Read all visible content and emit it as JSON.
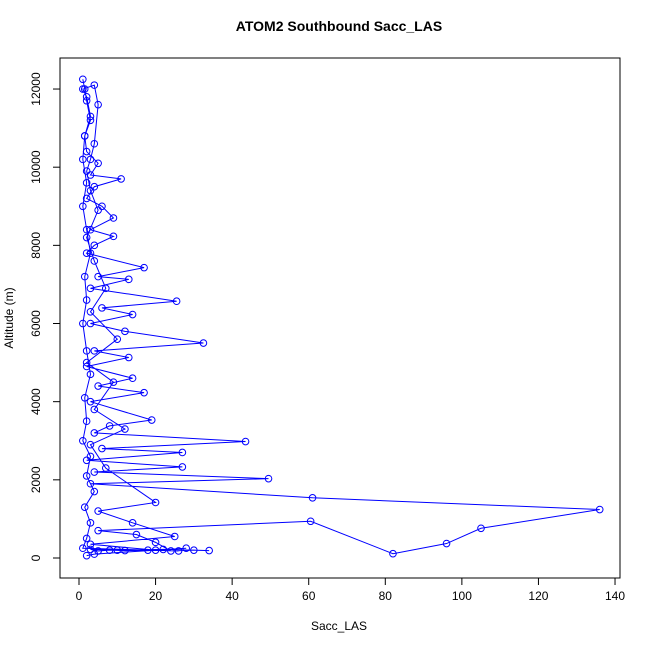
{
  "chart_data": {
    "type": "line",
    "title": "ATOM2 Southbound Sacc_LAS",
    "x_label": "Sacc_LAS",
    "y_label": "Altitude (m)",
    "color": "#0000ff",
    "marker": "circle",
    "x": [
      1,
      1.5,
      2,
      3,
      1.5,
      2,
      5,
      3,
      11,
      4,
      2,
      6,
      9,
      3,
      9,
      4,
      2,
      17,
      5,
      13,
      3,
      25.5,
      6,
      14,
      3,
      12,
      32.5,
      4,
      13,
      2,
      14,
      5,
      17,
      3,
      19,
      8,
      4,
      43.5,
      6,
      27,
      2,
      27,
      4,
      49.5,
      3,
      61,
      136,
      105,
      96,
      82,
      60.5,
      5,
      15,
      20,
      24,
      30,
      34,
      22,
      10,
      3,
      5,
      8,
      12,
      18,
      26,
      1,
      2,
      3,
      1.5,
      4,
      2,
      3,
      1,
      2,
      1.5,
      3,
      2,
      1,
      2,
      1.5,
      3,
      2,
      1,
      2,
      1,
      1.5,
      3,
      2,
      1,
      4,
      5,
      4,
      3,
      2,
      3,
      5,
      2,
      4,
      7,
      3,
      10,
      2,
      9,
      4,
      12,
      3,
      7,
      20,
      5,
      14,
      25,
      3,
      20,
      28,
      4,
      2
    ],
    "values": [
      12250,
      12000,
      11700,
      11200,
      10800,
      10400,
      10100,
      9800,
      9700,
      9500,
      9200,
      9000,
      8700,
      8400,
      8230,
      8000,
      7800,
      7430,
      7200,
      7130,
      6900,
      6570,
      6400,
      6230,
      6000,
      5800,
      5500,
      5300,
      5130,
      4900,
      4600,
      4400,
      4230,
      4000,
      3530,
      3380,
      3200,
      2980,
      2800,
      2700,
      2500,
      2330,
      2200,
      2030,
      1900,
      1540,
      1240,
      760,
      370,
      110,
      940,
      700,
      600,
      400,
      180,
      200,
      190,
      220,
      200,
      220,
      180,
      200,
      190,
      200,
      180,
      250,
      500,
      900,
      1300,
      1700,
      2100,
      2600,
      3000,
      3500,
      4100,
      4700,
      5300,
      6000,
      6600,
      7200,
      7800,
      8400,
      9000,
      9600,
      10200,
      10800,
      11300,
      11800,
      12000,
      12100,
      11600,
      10600,
      10200,
      9900,
      9400,
      8900,
      8200,
      7600,
      6900,
      6300,
      5600,
      5000,
      4500,
      3800,
      3300,
      2900,
      2300,
      1420,
      1200,
      900,
      550,
      350,
      200,
      250,
      100,
      60
    ],
    "xlim": [
      -4.96,
      141.3
    ],
    "ylim": [
      -512,
      12794
    ],
    "xticks": [
      0,
      20,
      40,
      60,
      80,
      100,
      120,
      140
    ],
    "yticks": [
      0,
      2000,
      4000,
      6000,
      8000,
      10000,
      12000
    ]
  }
}
